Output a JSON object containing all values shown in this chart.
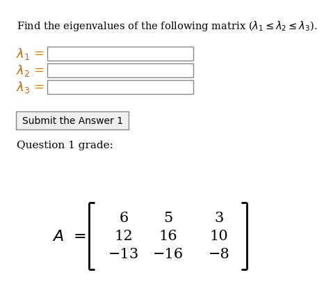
{
  "title": "Find the eigenvalues of the following matrix ($\\lambda_1 \\leq \\lambda_2 \\leq \\lambda_3$).",
  "lambda_labels_math": [
    "$\\lambda_1$",
    "$\\lambda_2$",
    "$\\lambda_3$"
  ],
  "button_text": "Submit the Answer 1",
  "question_label": "Question 1 grade:",
  "matrix_A_label": "$A$",
  "matrix": [
    [
      "6",
      "5",
      "3"
    ],
    [
      "12",
      "16",
      "10"
    ],
    [
      "−13",
      "−16",
      "−8"
    ]
  ],
  "bg_color": "#ffffff",
  "text_color": "#000000",
  "lambda_color": "#cc6600",
  "input_box_edge": "#888888",
  "button_bg": "#eeeeee",
  "button_edge": "#888888",
  "matrix_text_color": "#000000",
  "font_size_title": 10.5,
  "font_size_lambda": 13,
  "font_size_button": 10,
  "font_size_question": 11,
  "font_size_matrix": 15,
  "font_size_A": 16
}
